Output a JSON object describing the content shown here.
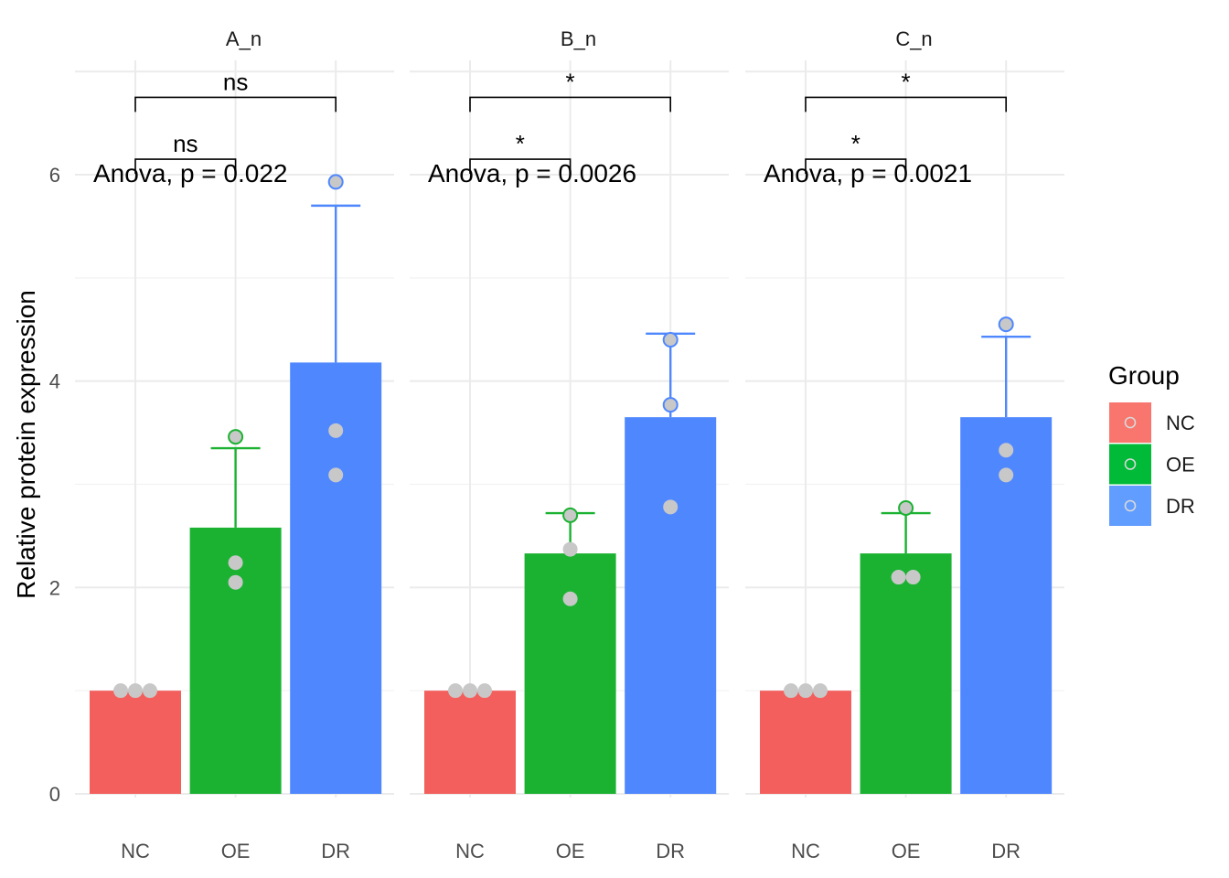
{
  "chart_data": {
    "type": "bar",
    "ylabel": "Relative protein expression",
    "xlabel": "",
    "ylim": [
      0,
      7.0
    ],
    "yticks": [
      0,
      2,
      4,
      6
    ],
    "categories": [
      "NC",
      "OE",
      "DR"
    ],
    "grid": true,
    "legend": {
      "title": "Group",
      "position": "right",
      "entries": [
        {
          "name": "NC",
          "color": "#F8766D"
        },
        {
          "name": "OE",
          "color": "#00BA38"
        },
        {
          "name": "DR",
          "color": "#619CFF"
        }
      ]
    },
    "colors": {
      "NC": "#F35F5C",
      "OE": "#1BB232",
      "DR": "#4F87FF"
    },
    "point_color": "#c8c8c8",
    "facets": [
      {
        "name": "A_n",
        "anova": "Anova, p = 0.022",
        "means": [
          1.0,
          2.58,
          4.18
        ],
        "error_upper": [
          1.0,
          3.35,
          5.7
        ],
        "points": [
          [
            1.0,
            1.0,
            1.0
          ],
          [
            3.46,
            2.24,
            2.05
          ],
          [
            5.93,
            3.52,
            3.09
          ]
        ],
        "comparisons": [
          {
            "groups": [
              "NC",
              "OE"
            ],
            "label": "ns",
            "y": 6.15
          },
          {
            "groups": [
              "NC",
              "DR"
            ],
            "label": "ns",
            "y": 6.75
          }
        ]
      },
      {
        "name": "B_n",
        "anova": "Anova, p = 0.0026",
        "means": [
          1.0,
          2.33,
          3.65
        ],
        "error_upper": [
          1.0,
          2.72,
          4.46
        ],
        "points": [
          [
            1.0,
            1.0,
            1.0
          ],
          [
            2.7,
            2.37,
            1.89
          ],
          [
            4.4,
            3.77,
            2.78
          ]
        ],
        "comparisons": [
          {
            "groups": [
              "NC",
              "OE"
            ],
            "label": "*",
            "y": 6.15
          },
          {
            "groups": [
              "NC",
              "DR"
            ],
            "label": "*",
            "y": 6.75
          }
        ]
      },
      {
        "name": "C_n",
        "anova": "Anova, p = 0.0021",
        "means": [
          1.0,
          2.33,
          3.65
        ],
        "error_upper": [
          1.0,
          2.72,
          4.43
        ],
        "points": [
          [
            1.0,
            1.0,
            1.0
          ],
          [
            2.77,
            2.1,
            2.1
          ],
          [
            4.55,
            3.33,
            3.09
          ]
        ],
        "comparisons": [
          {
            "groups": [
              "NC",
              "OE"
            ],
            "label": "*",
            "y": 6.15
          },
          {
            "groups": [
              "NC",
              "DR"
            ],
            "label": "*",
            "y": 6.75
          }
        ]
      }
    ]
  }
}
